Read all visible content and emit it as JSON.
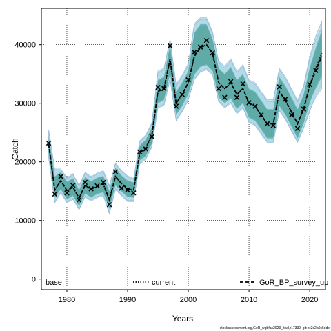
{
  "chart_data": {
    "type": "line",
    "xlabel": "Years",
    "ylabel": "Catch",
    "xlim": [
      1975.8,
      2022.6
    ],
    "ylim": [
      -1800,
      46200
    ],
    "x_ticks": [
      1980,
      1990,
      2000,
      2010,
      2020
    ],
    "y_ticks": [
      0,
      10000,
      20000,
      30000,
      40000
    ],
    "grid": true,
    "grid_style": "dotted",
    "legend_position": "bottom",
    "legend": [
      {
        "label": "base",
        "style": "none"
      },
      {
        "label": "current",
        "style": "dotted"
      },
      {
        "label": "GoR_BP_survey_up",
        "style": "dashed"
      }
    ],
    "footer_text": "stockassessment.org,GoR_wgbfas2023_final,r17339, git:ec2c2a0c6dde",
    "colors": {
      "band_outer": "#add8e6",
      "band_inner": "#5aa8a4",
      "line": "#000000",
      "observed_marker": "#000000"
    },
    "years": [
      1977,
      1978,
      1979,
      1980,
      1981,
      1982,
      1983,
      1984,
      1985,
      1986,
      1987,
      1988,
      1989,
      1990,
      1991,
      1992,
      1993,
      1994,
      1995,
      1996,
      1997,
      1998,
      1999,
      2000,
      2001,
      2002,
      2003,
      2004,
      2005,
      2006,
      2007,
      2008,
      2009,
      2010,
      2011,
      2012,
      2013,
      2014,
      2015,
      2016,
      2017,
      2018,
      2019,
      2020,
      2021,
      2022
    ],
    "series": [
      {
        "name": "current",
        "style": "dotted",
        "values": [
          23000,
          15200,
          16800,
          15100,
          15700,
          13800,
          16000,
          15300,
          15900,
          16200,
          13500,
          17500,
          16300,
          15400,
          15200,
          21500,
          22400,
          24500,
          32000,
          32500,
          37500,
          30000,
          31500,
          33500,
          38000,
          39500,
          40000,
          38500,
          33500,
          32500,
          33500,
          31500,
          32500,
          30000,
          29500,
          28000,
          26500,
          26500,
          32000,
          30500,
          28500,
          26500,
          29000,
          33000,
          36000,
          38500
        ],
        "band_inner_upper": [
          24500,
          17500,
          18300,
          16600,
          17200,
          15200,
          17400,
          16700,
          17300,
          17600,
          15000,
          19000,
          17700,
          16800,
          16500,
          22800,
          23800,
          25900,
          34000,
          34500,
          40000,
          32000,
          33500,
          35500,
          42000,
          43500,
          43500,
          41000,
          36000,
          35000,
          36200,
          34000,
          35000,
          32500,
          32000,
          30500,
          29000,
          29000,
          34500,
          33000,
          31000,
          29000,
          31500,
          36000,
          39500,
          42500
        ],
        "band_inner_lower": [
          21500,
          13900,
          15300,
          13600,
          14200,
          12400,
          14600,
          13900,
          14500,
          14800,
          12000,
          16000,
          14900,
          14000,
          13900,
          20200,
          21000,
          23100,
          30000,
          30500,
          35000,
          28000,
          29500,
          31500,
          34800,
          36200,
          36500,
          35500,
          31000,
          30000,
          30800,
          29000,
          30000,
          27500,
          27000,
          25500,
          24000,
          24000,
          29500,
          28000,
          26000,
          24000,
          26500,
          30000,
          33000,
          35000
        ],
        "band_outer_upper": [
          25500,
          18800,
          18800,
          17300,
          18000,
          16000,
          18200,
          17500,
          18100,
          18500,
          16000,
          19800,
          18500,
          17600,
          17200,
          23600,
          24600,
          26700,
          35500,
          36000,
          41000,
          33300,
          34800,
          36800,
          43600,
          44600,
          44600,
          42200,
          37200,
          36300,
          37600,
          35500,
          36600,
          34000,
          33500,
          32000,
          30600,
          30600,
          36000,
          34500,
          32500,
          30500,
          33000,
          38000,
          41500,
          44000
        ],
        "band_outer_lower": [
          20500,
          13000,
          14700,
          13000,
          13600,
          11800,
          14000,
          13300,
          13900,
          14200,
          11100,
          15200,
          14200,
          13200,
          13200,
          19600,
          20400,
          22500,
          29200,
          29600,
          34000,
          27000,
          28500,
          30500,
          34000,
          35300,
          35700,
          34800,
          30200,
          29200,
          30000,
          28200,
          29200,
          26700,
          26200,
          24700,
          23300,
          23300,
          28700,
          27200,
          25200,
          23300,
          25700,
          28500,
          31500,
          33000
        ]
      },
      {
        "name": "GoR_BP_survey_up",
        "style": "dashed",
        "values": [
          23000,
          15200,
          16800,
          15100,
          15700,
          13800,
          16000,
          15300,
          15900,
          16200,
          13500,
          17500,
          16300,
          15400,
          15200,
          21500,
          22400,
          24500,
          32000,
          32500,
          37500,
          30000,
          31500,
          33500,
          38000,
          39500,
          40000,
          38500,
          33500,
          32500,
          33500,
          31500,
          32500,
          30000,
          29500,
          28000,
          26500,
          26500,
          32000,
          30500,
          28500,
          26500,
          29000,
          33000,
          35500,
          38000
        ],
        "band_inner_upper": [
          24300,
          17300,
          18100,
          16500,
          17100,
          15100,
          17300,
          16600,
          17200,
          17500,
          14900,
          18900,
          17600,
          16700,
          16400,
          22700,
          23700,
          25800,
          33800,
          34300,
          39800,
          31800,
          33300,
          35300,
          41800,
          43300,
          43300,
          40800,
          35800,
          34800,
          36000,
          33800,
          34800,
          32300,
          31800,
          30300,
          28800,
          28800,
          34300,
          32800,
          30800,
          28800,
          31300,
          35800,
          39000,
          42000
        ],
        "band_inner_lower": [
          21700,
          14000,
          15400,
          13700,
          14300,
          12500,
          14700,
          14000,
          14600,
          14900,
          12100,
          16100,
          15000,
          14100,
          14000,
          20300,
          21100,
          23200,
          30200,
          30700,
          35200,
          28200,
          29700,
          31700,
          35000,
          36400,
          36700,
          35700,
          31200,
          30200,
          31000,
          29200,
          30200,
          27700,
          27200,
          25700,
          24200,
          24200,
          29700,
          28200,
          26200,
          24200,
          26700,
          30200,
          32500,
          34500
        ],
        "band_outer_upper": [
          25300,
          18600,
          18600,
          17100,
          17800,
          15800,
          18000,
          17300,
          17900,
          18300,
          15800,
          19600,
          18300,
          17400,
          17000,
          23400,
          24400,
          26500,
          35200,
          35700,
          40700,
          33000,
          34500,
          36500,
          43300,
          44300,
          44300,
          41900,
          36900,
          36000,
          37300,
          35200,
          36300,
          33700,
          33200,
          31700,
          30300,
          30300,
          35700,
          34200,
          32200,
          30200,
          32700,
          37500,
          40800,
          43000
        ],
        "band_outer_lower": [
          20700,
          13200,
          14900,
          13200,
          13800,
          12000,
          14200,
          13500,
          14100,
          14400,
          11300,
          15400,
          14400,
          13400,
          13400,
          19800,
          20600,
          22700,
          29400,
          29800,
          34200,
          27200,
          28700,
          30700,
          34200,
          35500,
          35900,
          35000,
          30400,
          29400,
          30200,
          28400,
          29400,
          26900,
          26400,
          24900,
          23500,
          23500,
          28900,
          27400,
          25400,
          23500,
          25900,
          28800,
          31000,
          32500
        ]
      }
    ],
    "observed": {
      "marker": "x",
      "years": [
        1977,
        1978,
        1979,
        1980,
        1981,
        1982,
        1983,
        1984,
        1985,
        1986,
        1987,
        1988,
        1989,
        1990,
        1991,
        1992,
        1993,
        1994,
        1995,
        1996,
        1997,
        1998,
        1999,
        2000,
        2001,
        2002,
        2003,
        2004,
        2005,
        2006,
        2007,
        2008,
        2009,
        2010,
        2011,
        2012,
        2013,
        2014,
        2015,
        2016,
        2017,
        2018,
        2019,
        2020,
        2021
      ],
      "values": [
        23200,
        14500,
        17500,
        14700,
        16000,
        13500,
        16500,
        15400,
        15900,
        16500,
        12700,
        18300,
        15500,
        15200,
        14700,
        21700,
        22200,
        24300,
        32700,
        32500,
        39800,
        29500,
        31500,
        34000,
        38700,
        39600,
        40700,
        38600,
        32500,
        31000,
        33700,
        31000,
        33300,
        30100,
        29500,
        28000,
        26500,
        26200,
        32800,
        30700,
        28000,
        25700,
        29000,
        33200,
        35600
      ]
    }
  }
}
